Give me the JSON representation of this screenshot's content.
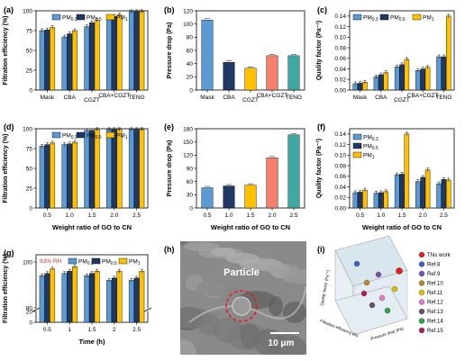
{
  "colors": {
    "pm03": "#5b9bd5",
    "pm05": "#1f3864",
    "pm1": "#ffc000",
    "mask": "#5b9bd5",
    "cba": "#1f3864",
    "cgzt": "#ffc000",
    "cbacgzt": "#f4806b",
    "teng": "#3fa8a2"
  },
  "icons": [
    "sem-micrograph",
    "3d-scatter-plot"
  ],
  "chart_data": [
    {
      "panel": "(a)",
      "type": "bar",
      "categories": [
        "Mask",
        "CBA",
        "CGZT",
        "CBA+CGZT",
        "TENG"
      ],
      "series": [
        {
          "name": "PM0.3",
          "values": [
            75,
            67,
            80,
            90,
            99
          ]
        },
        {
          "name": "PM0.5",
          "values": [
            76,
            71,
            85,
            93,
            99
          ]
        },
        {
          "name": "PM1",
          "values": [
            79,
            75,
            88,
            95,
            99
          ]
        }
      ],
      "xlabel": "",
      "ylabel": "Filtration efficiency (%)",
      "ylim": [
        0,
        100
      ],
      "yticks": [
        "0",
        "25",
        "50",
        "75",
        "100"
      ],
      "legend": [
        "PM0.3",
        "PM0.5",
        "PM1"
      ],
      "legend_position": "top"
    },
    {
      "panel": "(b)",
      "type": "bar",
      "categories": [
        "Mask",
        "CBA",
        "CGZT",
        "CBA+CGZT",
        "TENG"
      ],
      "values": [
        106,
        42,
        33,
        52,
        52
      ],
      "xlabel": "",
      "ylabel": "Pressure drop (Pa)",
      "ylim": [
        0,
        120
      ],
      "yticks": [
        "0",
        "20",
        "40",
        "60",
        "80",
        "100",
        "120"
      ]
    },
    {
      "panel": "(c)",
      "type": "bar",
      "categories": [
        "Mask",
        "CBA",
        "CGZT",
        "CBA+CGZT",
        "TENG"
      ],
      "series": [
        {
          "name": "PM0.3",
          "values": [
            0.012,
            0.025,
            0.044,
            0.037,
            0.063
          ]
        },
        {
          "name": "PM0.5",
          "values": [
            0.013,
            0.029,
            0.048,
            0.04,
            0.063
          ]
        },
        {
          "name": "PM1",
          "values": [
            0.015,
            0.033,
            0.058,
            0.043,
            0.14
          ]
        }
      ],
      "xlabel": "",
      "ylabel": "Quality factor (Pa⁻¹)",
      "ylim": [
        0,
        0.15
      ],
      "yticks": [
        "0.00",
        "0.02",
        "0.04",
        "0.06",
        "0.08",
        "0.10",
        "0.12",
        "0.14"
      ],
      "legend": [
        "PM0.3",
        "PM0.5",
        "PM1"
      ],
      "legend_position": "top"
    },
    {
      "panel": "(d)",
      "type": "bar",
      "categories": [
        "0.5",
        "1.0",
        "1.5",
        "2.0",
        "2.5"
      ],
      "series": [
        {
          "name": "PM0.3",
          "values": [
            78,
            80,
            98,
            99,
            99
          ]
        },
        {
          "name": "PM0.5",
          "values": [
            80,
            81,
            98,
            99,
            99
          ]
        },
        {
          "name": "PM1",
          "values": [
            82,
            83,
            99,
            99,
            99
          ]
        }
      ],
      "xlabel": "Weight ratio of GO to CN",
      "ylabel": "Filtration efficiency (%)",
      "ylim": [
        0,
        100
      ],
      "yticks": [
        "0",
        "25",
        "50",
        "75",
        "100"
      ],
      "legend": [
        "PM0.3",
        "PM0.5",
        "PM1"
      ],
      "legend_position": "top"
    },
    {
      "panel": "(e)",
      "type": "bar",
      "categories": [
        "0.5",
        "1.0",
        "1.5",
        "2.0",
        "2.5"
      ],
      "values": [
        46,
        50,
        52,
        114,
        166
      ],
      "xlabel": "Weight ratio of GO to CN",
      "ylabel": "Pressure drop (Pa)",
      "ylim": [
        0,
        180
      ],
      "yticks": [
        "0",
        "30",
        "60",
        "90",
        "120",
        "150",
        "180"
      ]
    },
    {
      "panel": "(f)",
      "type": "bar",
      "categories": [
        "0.5",
        "1.0",
        "1.5",
        "2.0",
        "2.5"
      ],
      "series": [
        {
          "name": "PM0.3",
          "values": [
            0.029,
            0.028,
            0.063,
            0.05,
            0.046
          ]
        },
        {
          "name": "PM0.5",
          "values": [
            0.03,
            0.029,
            0.064,
            0.058,
            0.054
          ]
        },
        {
          "name": "PM1",
          "values": [
            0.034,
            0.031,
            0.14,
            0.072,
            0.053
          ]
        }
      ],
      "xlabel": "Weight ratio of GO to CN",
      "ylabel": "Quality factor (Pa⁻¹)",
      "ylim": [
        0,
        0.15
      ],
      "yticks": [
        "0.00",
        "0.02",
        "0.04",
        "0.06",
        "0.08",
        "0.10",
        "0.12",
        "0.14"
      ],
      "legend": [
        "PM0.3",
        "PM0.5",
        "PM1"
      ],
      "legend_position": "top-left"
    },
    {
      "panel": "(g)",
      "type": "bar",
      "categories": [
        "0.5",
        "1",
        "1.5",
        "2",
        "2.5"
      ],
      "series": [
        {
          "name": "PM0.3",
          "values": [
            94,
            95,
            94,
            92,
            92
          ]
        },
        {
          "name": "PM0.5",
          "values": [
            95,
            96,
            95,
            93,
            93
          ]
        },
        {
          "name": "PM1",
          "values": [
            97,
            98,
            96,
            96,
            96
          ]
        }
      ],
      "xlabel": "Time (h)",
      "ylabel": "Filtration efficiency (%)",
      "ylim": [
        0,
        100
      ],
      "yticks": [
        "0",
        "20",
        "80",
        "100"
      ],
      "broken_axis": true,
      "annotation": "93% RH",
      "legend": [
        "PM0.3",
        "PM0.5",
        "PM1"
      ],
      "legend_position": "top"
    }
  ],
  "panel_h": {
    "label": "(h)",
    "particle_label": "Particle",
    "scale_bar": "10 μm"
  },
  "panel_i": {
    "label": "(i)",
    "axis_z": "Quality factor (Pa⁻¹)",
    "axis_x": "Filtration efficiency (%)",
    "axis_y": "Pressure drop (Pa)",
    "legend": [
      {
        "name": "This work",
        "color": "#e0201b"
      },
      {
        "name": "Ref.8",
        "color": "#3a5fc8"
      },
      {
        "name": "Ref.9",
        "color": "#7b4fb0"
      },
      {
        "name": "Ref.10",
        "color": "#b8862a"
      },
      {
        "name": "Ref.11",
        "color": "#d9c000"
      },
      {
        "name": "Ref.12",
        "color": "#e07ac4"
      },
      {
        "name": "Ref.13",
        "color": "#6b4f6b"
      },
      {
        "name": "Ref.14",
        "color": "#2aa74a"
      },
      {
        "name": "Ref.15",
        "color": "#b01d5c"
      }
    ]
  }
}
